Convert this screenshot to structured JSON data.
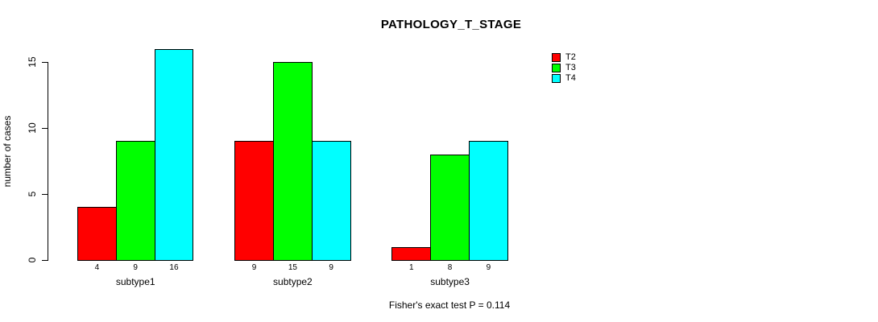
{
  "title": "PATHOLOGY_T_STAGE",
  "footnote": "Fisher's exact test P = 0.114",
  "colors": {
    "background": "#ffffff",
    "axis": "#000000",
    "text": "#000000"
  },
  "chart_data": {
    "type": "bar",
    "title": "PATHOLOGY_T_STAGE",
    "xlabel": "",
    "ylabel": "number of cases",
    "categories": [
      "subtype1",
      "subtype2",
      "subtype3"
    ],
    "series": [
      {
        "name": "T2",
        "color": "#FF0000",
        "values": [
          4,
          9,
          1
        ]
      },
      {
        "name": "T3",
        "color": "#00FF00",
        "values": [
          9,
          15,
          8
        ]
      },
      {
        "name": "T4",
        "color": "#00FFFF",
        "values": [
          16,
          9,
          9
        ]
      }
    ],
    "bar_value_labels": [
      [
        "4",
        "9",
        "16"
      ],
      [
        "9",
        "15",
        "9"
      ],
      [
        "1",
        "8",
        "9"
      ]
    ],
    "yticks": [
      0,
      5,
      10,
      15
    ],
    "ylim": [
      0,
      16.6
    ],
    "grid": false,
    "legend_position": "top-right",
    "annotation": "Fisher's exact test P = 0.114"
  }
}
